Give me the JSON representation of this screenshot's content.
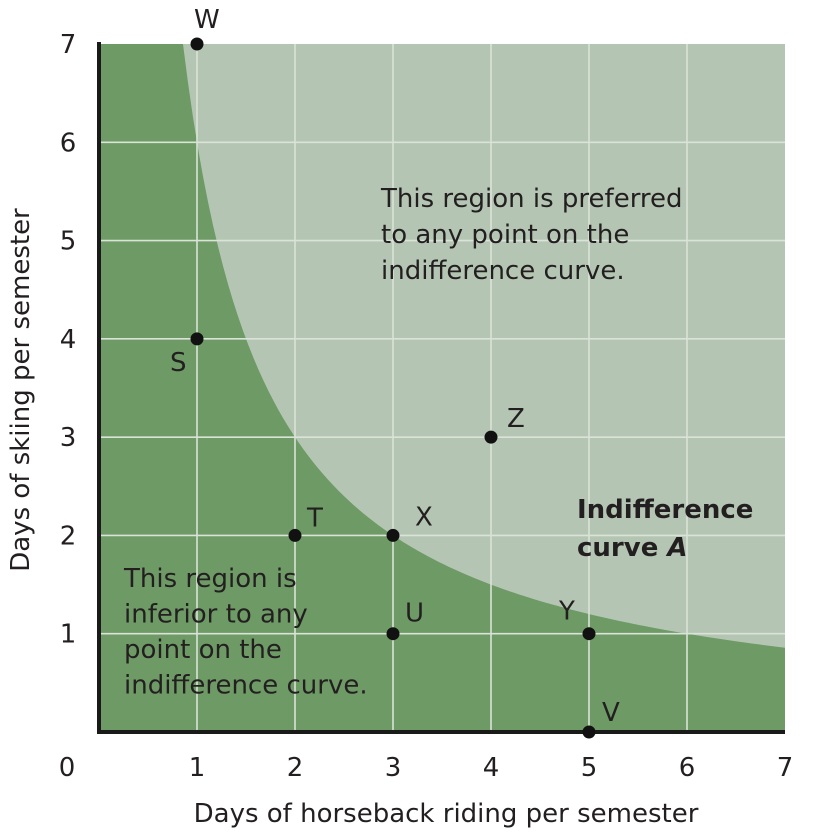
{
  "chart_data": {
    "type": "scatter",
    "xlabel": "Days of horseback riding per semester",
    "ylabel": "Days of skiing per semester",
    "xlim": [
      0,
      7
    ],
    "ylim": [
      0,
      7
    ],
    "x_ticks": [
      "0",
      "1",
      "2",
      "3",
      "4",
      "5",
      "6",
      "7"
    ],
    "y_ticks": [
      "1",
      "2",
      "3",
      "4",
      "5",
      "6",
      "7"
    ],
    "grid": true,
    "colors": {
      "preferred_region": "#b4c6b3",
      "inferior_region": "#6e9a66",
      "grid": "#d9e3d8",
      "axis": "#1a1a1a",
      "point": "#111111"
    },
    "indifference_curve": {
      "label_lines": [
        "Indifference",
        "curve "
      ],
      "label_italic": "A",
      "equation_xy": 6,
      "x_range": [
        0.857,
        7
      ]
    },
    "points": [
      {
        "label": "W",
        "x": 1,
        "y": 7
      },
      {
        "label": "S",
        "x": 1,
        "y": 4
      },
      {
        "label": "Z",
        "x": 4,
        "y": 3
      },
      {
        "label": "T",
        "x": 2,
        "y": 2
      },
      {
        "label": "X",
        "x": 3,
        "y": 2
      },
      {
        "label": "U",
        "x": 3,
        "y": 1
      },
      {
        "label": "Y",
        "x": 5,
        "y": 1
      },
      {
        "label": "V",
        "x": 5,
        "y": 0
      }
    ],
    "annotations": {
      "preferred": [
        "This region is preferred",
        "to any point on the",
        "indifference curve."
      ],
      "inferior": [
        "This region is",
        "inferior to any",
        "point on the",
        "indifference curve."
      ]
    }
  }
}
